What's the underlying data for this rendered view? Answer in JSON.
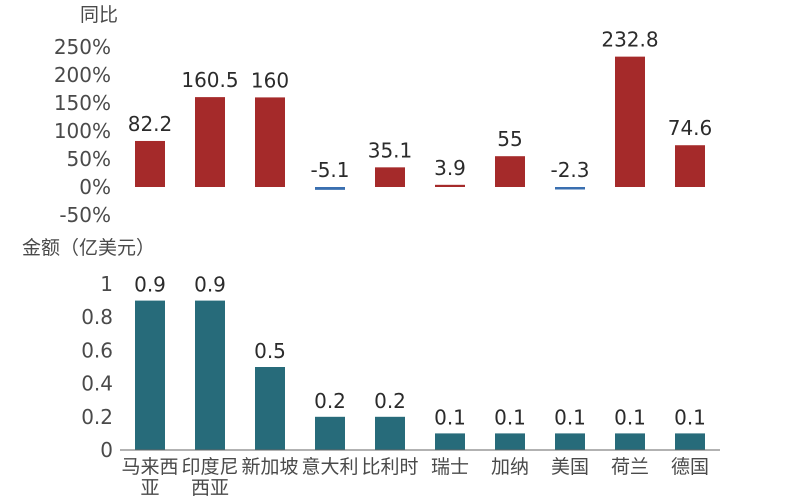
{
  "colors": {
    "positive": "#a52a2a",
    "negative": "#3a6fb0",
    "amount": "#276b7a",
    "axis": "#666666"
  },
  "chart_data": [
    {
      "type": "bar",
      "title": "同比",
      "categories": [
        "马来西亚",
        "印度尼西亚",
        "新加坡",
        "意大利",
        "比利时",
        "瑞士",
        "加纳",
        "美国",
        "荷兰",
        "德国"
      ],
      "values": [
        82.2,
        160.5,
        160,
        -5.1,
        35.1,
        3.9,
        55,
        -2.3,
        232.8,
        74.6
      ],
      "value_labels": [
        "82.2",
        "160.5",
        "160",
        "-5.1",
        "35.1",
        "3.9",
        "55",
        "-2.3",
        "232.8",
        "74.6"
      ],
      "yticks": [
        "250%",
        "200%",
        "150%",
        "100%",
        "50%",
        "0%",
        "-50%"
      ],
      "ylim": [
        -50,
        250
      ],
      "grid": false
    },
    {
      "type": "bar",
      "title": "金额（亿美元）",
      "categories": [
        "马来西亚",
        "印度尼西亚",
        "新加坡",
        "意大利",
        "比利时",
        "瑞士",
        "加纳",
        "美国",
        "荷兰",
        "德国"
      ],
      "category_lines": [
        [
          "马来西",
          "亚"
        ],
        [
          "印度尼",
          "西亚"
        ],
        [
          "新加坡"
        ],
        [
          "意大利"
        ],
        [
          "比利时"
        ],
        [
          "瑞士"
        ],
        [
          "加纳"
        ],
        [
          "美国"
        ],
        [
          "荷兰"
        ],
        [
          "德国"
        ]
      ],
      "values": [
        0.9,
        0.9,
        0.5,
        0.2,
        0.2,
        0.1,
        0.1,
        0.1,
        0.1,
        0.1
      ],
      "value_labels": [
        "0.9",
        "0.9",
        "0.5",
        "0.2",
        "0.2",
        "0.1",
        "0.1",
        "0.1",
        "0.1",
        "0.1"
      ],
      "yticks": [
        "1",
        "0.8",
        "0.6",
        "0.4",
        "0.2",
        "0"
      ],
      "ylim": [
        0,
        1
      ],
      "grid": false
    }
  ]
}
